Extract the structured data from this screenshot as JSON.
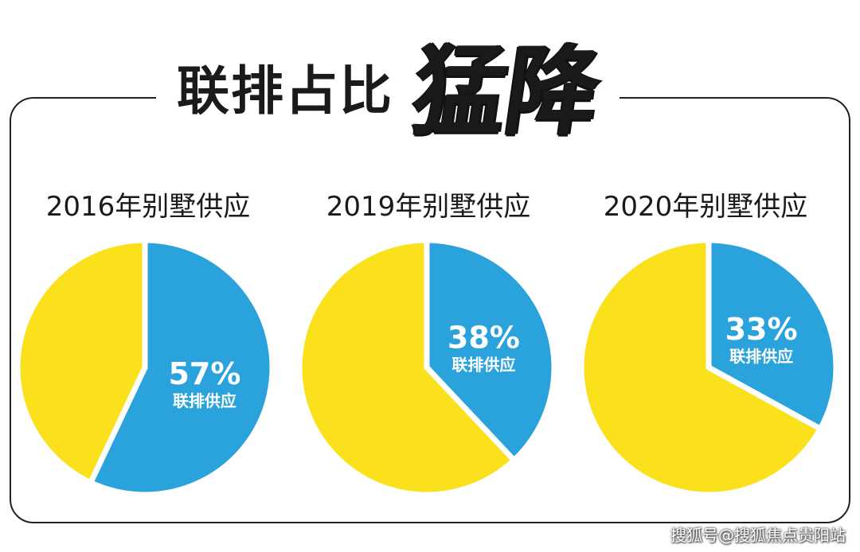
{
  "header": {
    "title": "联排占比",
    "title_accent": "猛降"
  },
  "chart_data": [
    {
      "type": "pie",
      "title": "2016年别墅供应",
      "slices": [
        {
          "label": "联排供应",
          "value": 57,
          "display": "57%",
          "color": "#2aa3dd"
        },
        {
          "label": "",
          "value": 43,
          "color": "#fae11c"
        }
      ]
    },
    {
      "type": "pie",
      "title": "2019年别墅供应",
      "slices": [
        {
          "label": "联排供应",
          "value": 38,
          "display": "38%",
          "color": "#2aa3dd"
        },
        {
          "label": "",
          "value": 62,
          "color": "#fae11c"
        }
      ]
    },
    {
      "type": "pie",
      "title": "2020年别墅供应",
      "slices": [
        {
          "label": "联排供应",
          "value": 33,
          "display": "33%",
          "color": "#2aa3dd"
        },
        {
          "label": "",
          "value": 67,
          "color": "#fae11c"
        }
      ]
    }
  ],
  "watermark": "搜狐号@搜狐焦点贵阳站"
}
